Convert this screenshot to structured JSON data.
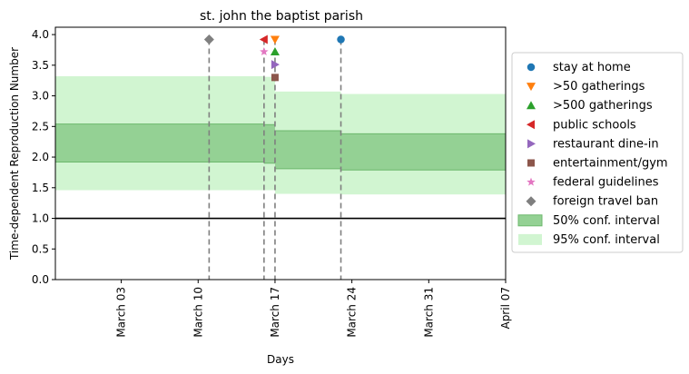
{
  "chart_data": {
    "type": "step-area",
    "title": "st. john the baptist parish",
    "xlabel": "Days",
    "ylabel": "Time-dependent Reproduction Number",
    "xlim": [
      "2020-02-26",
      "2020-04-07"
    ],
    "ylim": [
      0,
      4.12
    ],
    "yticks": [
      0.0,
      0.5,
      1.0,
      1.5,
      2.0,
      2.5,
      3.0,
      3.5,
      4.0
    ],
    "ytick_labels": [
      "0.0",
      "0.5",
      "1.0",
      "1.5",
      "2.0",
      "2.5",
      "3.0",
      "3.5",
      "4.0"
    ],
    "xticks": [
      "2020-03-03",
      "2020-03-10",
      "2020-03-17",
      "2020-03-24",
      "2020-03-31",
      "2020-04-07"
    ],
    "xtick_labels": [
      "March 03",
      "March 10",
      "March 17",
      "March 24",
      "March 31",
      "April 07"
    ],
    "reference_line": 1.0,
    "periods": [
      {
        "start": "2020-02-26",
        "end": "2020-03-16",
        "ci50": [
          1.92,
          2.54
        ],
        "ci95": [
          1.46,
          3.32
        ]
      },
      {
        "start": "2020-03-16",
        "end": "2020-03-17",
        "ci50": [
          1.9,
          2.53
        ],
        "ci95": [
          1.46,
          3.31
        ]
      },
      {
        "start": "2020-03-17",
        "end": "2020-03-23",
        "ci50": [
          1.81,
          2.43
        ],
        "ci95": [
          1.4,
          3.07
        ]
      },
      {
        "start": "2020-03-23",
        "end": "2020-04-07",
        "ci50": [
          1.79,
          2.38
        ],
        "ci95": [
          1.39,
          3.03
        ]
      }
    ],
    "interventions": [
      {
        "name": "stay at home",
        "date": "2020-03-23",
        "y": 3.92,
        "marker": "circle",
        "color": "#1f77b4"
      },
      {
        "name": ">50 gatherings",
        "date": "2020-03-17",
        "y": 3.92,
        "marker": "triangle-down",
        "color": "#ff7f0e"
      },
      {
        "name": ">500 gatherings",
        "date": "2020-03-17",
        "y": 3.72,
        "marker": "triangle-up",
        "color": "#2ca02c"
      },
      {
        "name": "public schools",
        "date": "2020-03-16",
        "y": 3.92,
        "marker": "triangle-left",
        "color": "#d62728"
      },
      {
        "name": "restaurant dine-in",
        "date": "2020-03-17",
        "y": 3.51,
        "marker": "triangle-right",
        "color": "#9467bd"
      },
      {
        "name": "entertainment/gym",
        "date": "2020-03-17",
        "y": 3.3,
        "marker": "square",
        "color": "#8c564b"
      },
      {
        "name": "federal guidelines",
        "date": "2020-03-16",
        "y": 3.72,
        "marker": "star",
        "color": "#e377c2"
      },
      {
        "name": "foreign travel ban",
        "date": "2020-03-11",
        "y": 3.92,
        "marker": "diamond",
        "color": "#7f7f7f"
      }
    ],
    "vlines": [
      "2020-03-11",
      "2020-03-16",
      "2020-03-17",
      "2020-03-23"
    ],
    "ci_labels": {
      "ci50": "50% conf. interval",
      "ci95": "95% conf. interval"
    },
    "colors": {
      "ci50": "#94d194",
      "ci50_edge": "#6cb86c",
      "ci95": "#d1f5d1",
      "vline": "#7f7f7f",
      "reference": "#000000"
    },
    "legend_position": "right"
  }
}
